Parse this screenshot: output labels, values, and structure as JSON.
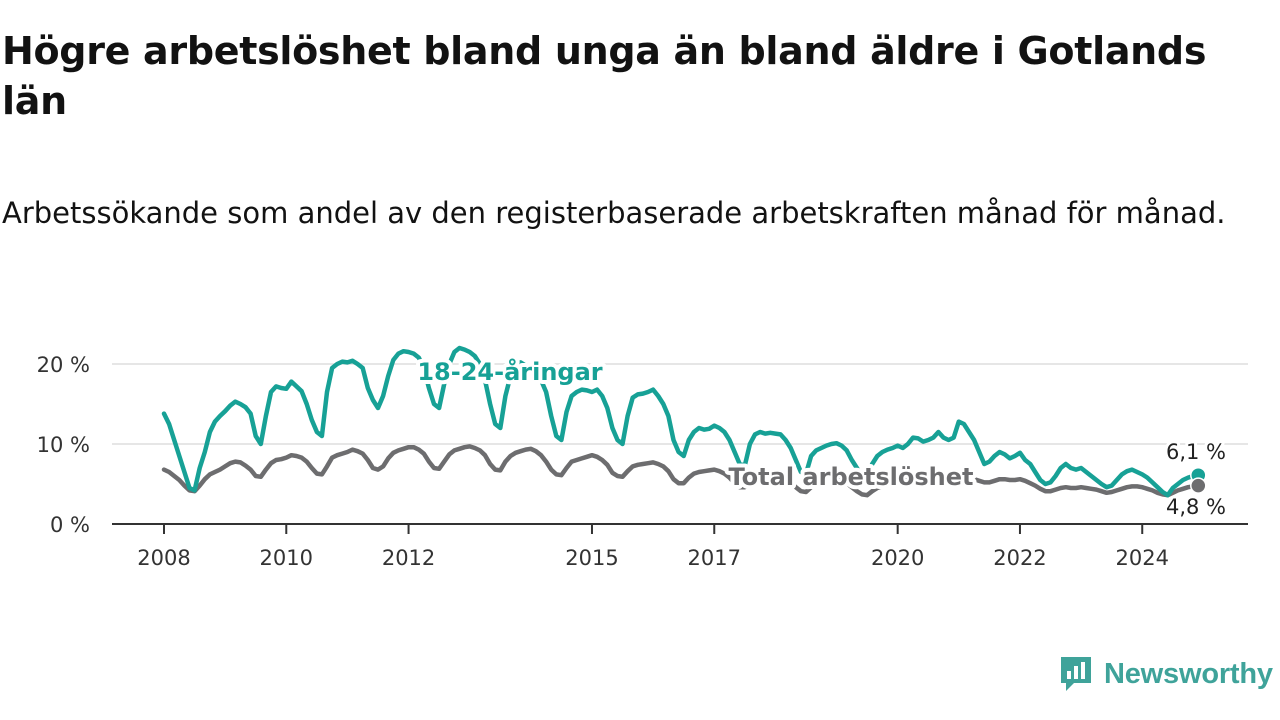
{
  "title": "Högre arbetslöshet bland unga än bland äldre i Gotlands län",
  "subtitle": "Arbetssökande som andel av den registerbaserade arbetskraften månad för månad.",
  "brand": "Newsworthy",
  "colors": {
    "youth": "#17a196",
    "total": "#6d6d6f",
    "axis": "#333333",
    "grid": "#dddddd",
    "brand": "#3fa39a"
  },
  "chart_data": {
    "type": "line",
    "frequency": "monthly",
    "x_start": "2008-01",
    "x_end": "2025-01",
    "xticks": [
      {
        "value": "2008-01",
        "label": "2008"
      },
      {
        "value": "2010-01",
        "label": "2010"
      },
      {
        "value": "2012-01",
        "label": "2012"
      },
      {
        "value": "2015-01",
        "label": "2015"
      },
      {
        "value": "2017-01",
        "label": "2017"
      },
      {
        "value": "2020-01",
        "label": "2020"
      },
      {
        "value": "2022-01",
        "label": "2022"
      },
      {
        "value": "2024-01",
        "label": "2024"
      }
    ],
    "yticks": [
      {
        "value": 0,
        "label": "0 %"
      },
      {
        "value": 10,
        "label": "10 %"
      },
      {
        "value": 20,
        "label": "20 %"
      }
    ],
    "ylim": [
      0,
      21
    ],
    "grid": true,
    "series": [
      {
        "name": "18-24-åringar",
        "color": "#17a196",
        "end_label": "6,1 %",
        "values": [
          13.8,
          12.5,
          10.5,
          8.5,
          6.5,
          4.5,
          4.2,
          7.0,
          9.0,
          11.5,
          12.8,
          13.5,
          14.1,
          14.8,
          15.3,
          15.0,
          14.6,
          13.8,
          11.0,
          10.0,
          13.5,
          16.5,
          17.2,
          17.0,
          16.9,
          17.8,
          17.2,
          16.6,
          15.0,
          13.0,
          11.5,
          11.0,
          16.5,
          19.5,
          20.0,
          20.3,
          20.2,
          20.4,
          20.0,
          19.5,
          17.0,
          15.5,
          14.5,
          16.0,
          18.5,
          20.5,
          21.3,
          21.6,
          21.5,
          21.3,
          20.8,
          19.5,
          17.0,
          15.0,
          14.5,
          17.5,
          20.0,
          21.5,
          22.0,
          21.8,
          21.5,
          21.0,
          20.0,
          18.0,
          15.0,
          12.5,
          12.0,
          16.0,
          18.5,
          19.8,
          20.2,
          19.8,
          19.5,
          19.2,
          18.0,
          16.5,
          13.5,
          11.0,
          10.5,
          14.0,
          16.0,
          16.5,
          16.8,
          16.7,
          16.5,
          16.8,
          16.0,
          14.5,
          12.0,
          10.5,
          10.0,
          13.5,
          15.8,
          16.2,
          16.3,
          16.5,
          16.8,
          16.0,
          15.0,
          13.5,
          10.5,
          9.0,
          8.5,
          10.5,
          11.5,
          12.0,
          11.8,
          11.9,
          12.3,
          12.0,
          11.5,
          10.5,
          9.0,
          7.5,
          7.3,
          10.0,
          11.2,
          11.5,
          11.3,
          11.4,
          11.3,
          11.2,
          10.5,
          9.5,
          8.0,
          6.5,
          6.3,
          8.5,
          9.2,
          9.5,
          9.8,
          10.0,
          10.1,
          9.8,
          9.2,
          8.0,
          7.0,
          6.0,
          5.9,
          7.5,
          8.5,
          9.0,
          9.3,
          9.5,
          9.8,
          9.5,
          10.0,
          10.8,
          10.7,
          10.3,
          10.5,
          10.8,
          11.5,
          10.8,
          10.5,
          10.8,
          12.8,
          12.5,
          11.5,
          10.5,
          9.0,
          7.5,
          7.8,
          8.5,
          9.0,
          8.7,
          8.2,
          8.5,
          8.9,
          8.0,
          7.5,
          6.5,
          5.5,
          5.0,
          5.2,
          6.0,
          7.0,
          7.5,
          7.0,
          6.8,
          7.0,
          6.5,
          6.0,
          5.5,
          5.0,
          4.6,
          4.8,
          5.5,
          6.2,
          6.6,
          6.8,
          6.5,
          6.2,
          5.8,
          5.2,
          4.6,
          4.0,
          3.6,
          4.5,
          5.0,
          5.5,
          5.8,
          6.0,
          6.1
        ]
      },
      {
        "name": "Total arbetslöshet",
        "color": "#6d6d6f",
        "end_label": "4,8 %",
        "values": [
          6.8,
          6.5,
          6.0,
          5.5,
          4.8,
          4.2,
          4.1,
          4.8,
          5.6,
          6.2,
          6.5,
          6.8,
          7.2,
          7.6,
          7.8,
          7.7,
          7.3,
          6.8,
          6.0,
          5.9,
          6.8,
          7.6,
          8.0,
          8.1,
          8.3,
          8.6,
          8.5,
          8.3,
          7.8,
          7.0,
          6.3,
          6.2,
          7.2,
          8.3,
          8.6,
          8.8,
          9.0,
          9.3,
          9.1,
          8.8,
          8.0,
          7.0,
          6.8,
          7.2,
          8.2,
          8.9,
          9.2,
          9.4,
          9.6,
          9.6,
          9.3,
          8.8,
          7.8,
          7.0,
          6.9,
          7.8,
          8.7,
          9.2,
          9.4,
          9.6,
          9.7,
          9.5,
          9.2,
          8.6,
          7.5,
          6.8,
          6.7,
          7.8,
          8.5,
          8.9,
          9.1,
          9.3,
          9.4,
          9.1,
          8.6,
          7.8,
          6.8,
          6.2,
          6.1,
          7.0,
          7.8,
          8.0,
          8.2,
          8.4,
          8.6,
          8.4,
          8.0,
          7.4,
          6.4,
          6.0,
          5.9,
          6.6,
          7.2,
          7.4,
          7.5,
          7.6,
          7.7,
          7.5,
          7.2,
          6.6,
          5.6,
          5.1,
          5.1,
          5.8,
          6.3,
          6.5,
          6.6,
          6.7,
          6.8,
          6.6,
          6.3,
          5.8,
          5.1,
          4.6,
          4.6,
          5.3,
          5.8,
          6.0,
          6.1,
          6.2,
          6.2,
          6.0,
          5.7,
          5.2,
          4.6,
          4.1,
          4.0,
          4.6,
          5.0,
          5.2,
          5.3,
          5.4,
          5.5,
          5.3,
          5.1,
          4.6,
          4.1,
          3.7,
          3.6,
          4.1,
          4.5,
          4.7,
          4.8,
          5.0,
          5.4,
          5.6,
          5.7,
          5.8,
          5.7,
          5.6,
          5.5,
          5.6,
          5.8,
          5.6,
          5.4,
          5.5,
          5.8,
          5.8,
          5.7,
          5.6,
          5.4,
          5.2,
          5.2,
          5.4,
          5.6,
          5.6,
          5.5,
          5.5,
          5.6,
          5.4,
          5.1,
          4.8,
          4.4,
          4.1,
          4.1,
          4.3,
          4.5,
          4.6,
          4.5,
          4.5,
          4.6,
          4.5,
          4.4,
          4.3,
          4.1,
          3.9,
          4.0,
          4.2,
          4.4,
          4.6,
          4.7,
          4.7,
          4.6,
          4.4,
          4.2,
          3.9,
          3.7,
          3.6,
          3.9,
          4.2,
          4.4,
          4.6,
          4.7,
          4.8
        ]
      }
    ]
  }
}
